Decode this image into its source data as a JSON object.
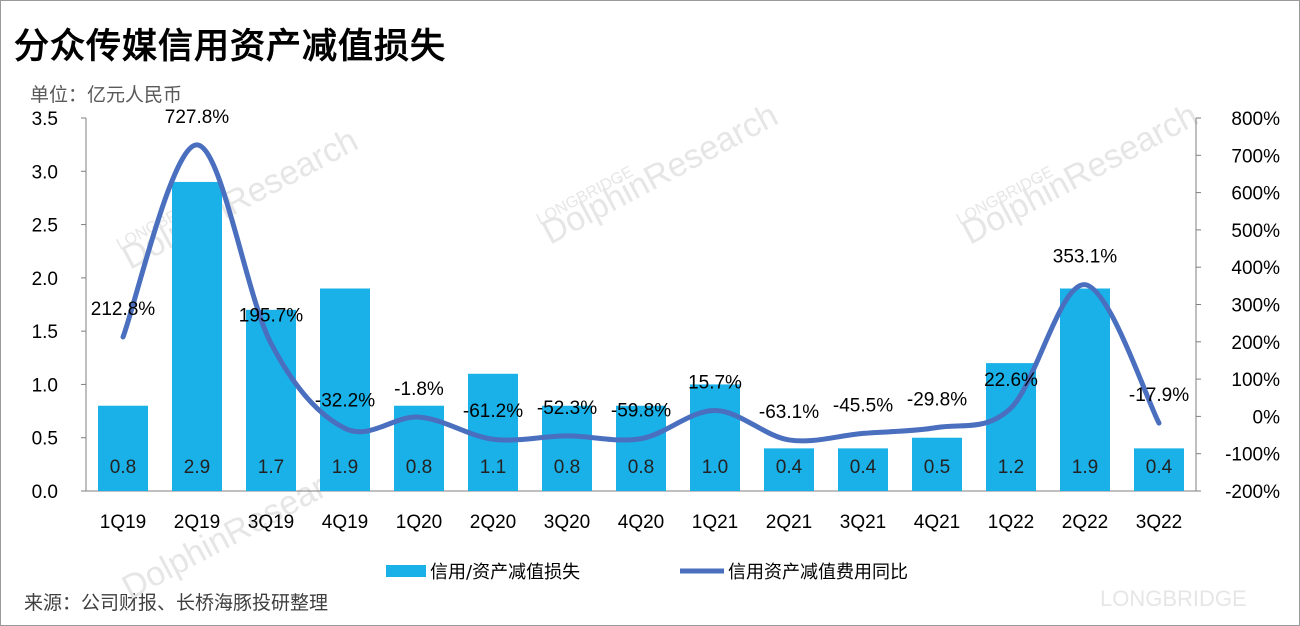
{
  "title": "分众传媒信用资产减值损失",
  "unit": "单位：亿元人民币",
  "source": "来源：公司财报、长桥海豚投研整理",
  "watermark": {
    "brand": "LONGBRIDGE",
    "research": "DolphinResearch"
  },
  "colors": {
    "bar": "#1ab0e8",
    "line": "#4a6fbf"
  },
  "chart_data": {
    "type": "bar+line",
    "categories": [
      "1Q19",
      "2Q19",
      "3Q19",
      "4Q19",
      "1Q20",
      "2Q20",
      "3Q20",
      "4Q20",
      "1Q21",
      "2Q21",
      "3Q21",
      "4Q21",
      "1Q22",
      "2Q22",
      "3Q22"
    ],
    "series": [
      {
        "name": "信用/资产减值损失",
        "type": "bar",
        "axis": "left",
        "values": [
          0.8,
          2.9,
          1.7,
          1.9,
          0.8,
          1.1,
          0.8,
          0.8,
          1.0,
          0.4,
          0.4,
          0.5,
          1.2,
          1.9,
          0.4
        ],
        "labels": [
          "0.8",
          "2.9",
          "1.7",
          "1.9",
          "0.8",
          "1.1",
          "0.8",
          "0.8",
          "1.0",
          "0.4",
          "0.4",
          "0.5",
          "1.2",
          "1.9",
          "0.4"
        ]
      },
      {
        "name": "信用资产减值费用同比",
        "type": "line",
        "axis": "right",
        "values": [
          212.8,
          727.8,
          195.7,
          -32.2,
          -1.8,
          -61.2,
          -52.3,
          -59.8,
          15.7,
          -63.1,
          -45.5,
          -29.8,
          22.6,
          353.1,
          -17.9
        ],
        "labels": [
          "212.8%",
          "727.8%",
          "195.7%",
          "-32.2%",
          "-1.8%",
          "-61.2%",
          "-52.3%",
          "-59.8%",
          "15.7%",
          "-63.1%",
          "-45.5%",
          "-29.8%",
          "22.6%",
          "353.1%",
          "-17.9%"
        ]
      }
    ],
    "y_left": {
      "min": 0,
      "max": 3.5,
      "ticks": [
        "0.0",
        "0.5",
        "1.0",
        "1.5",
        "2.0",
        "2.5",
        "3.0",
        "3.5"
      ]
    },
    "y_right": {
      "min": -200,
      "max": 800,
      "ticks": [
        "-200%",
        "-100%",
        "0%",
        "100%",
        "200%",
        "300%",
        "400%",
        "500%",
        "600%",
        "700%",
        "800%"
      ]
    },
    "legend": {
      "position": "bottom",
      "entries": [
        "信用/资产减值损失",
        "信用资产减值费用同比"
      ]
    }
  }
}
